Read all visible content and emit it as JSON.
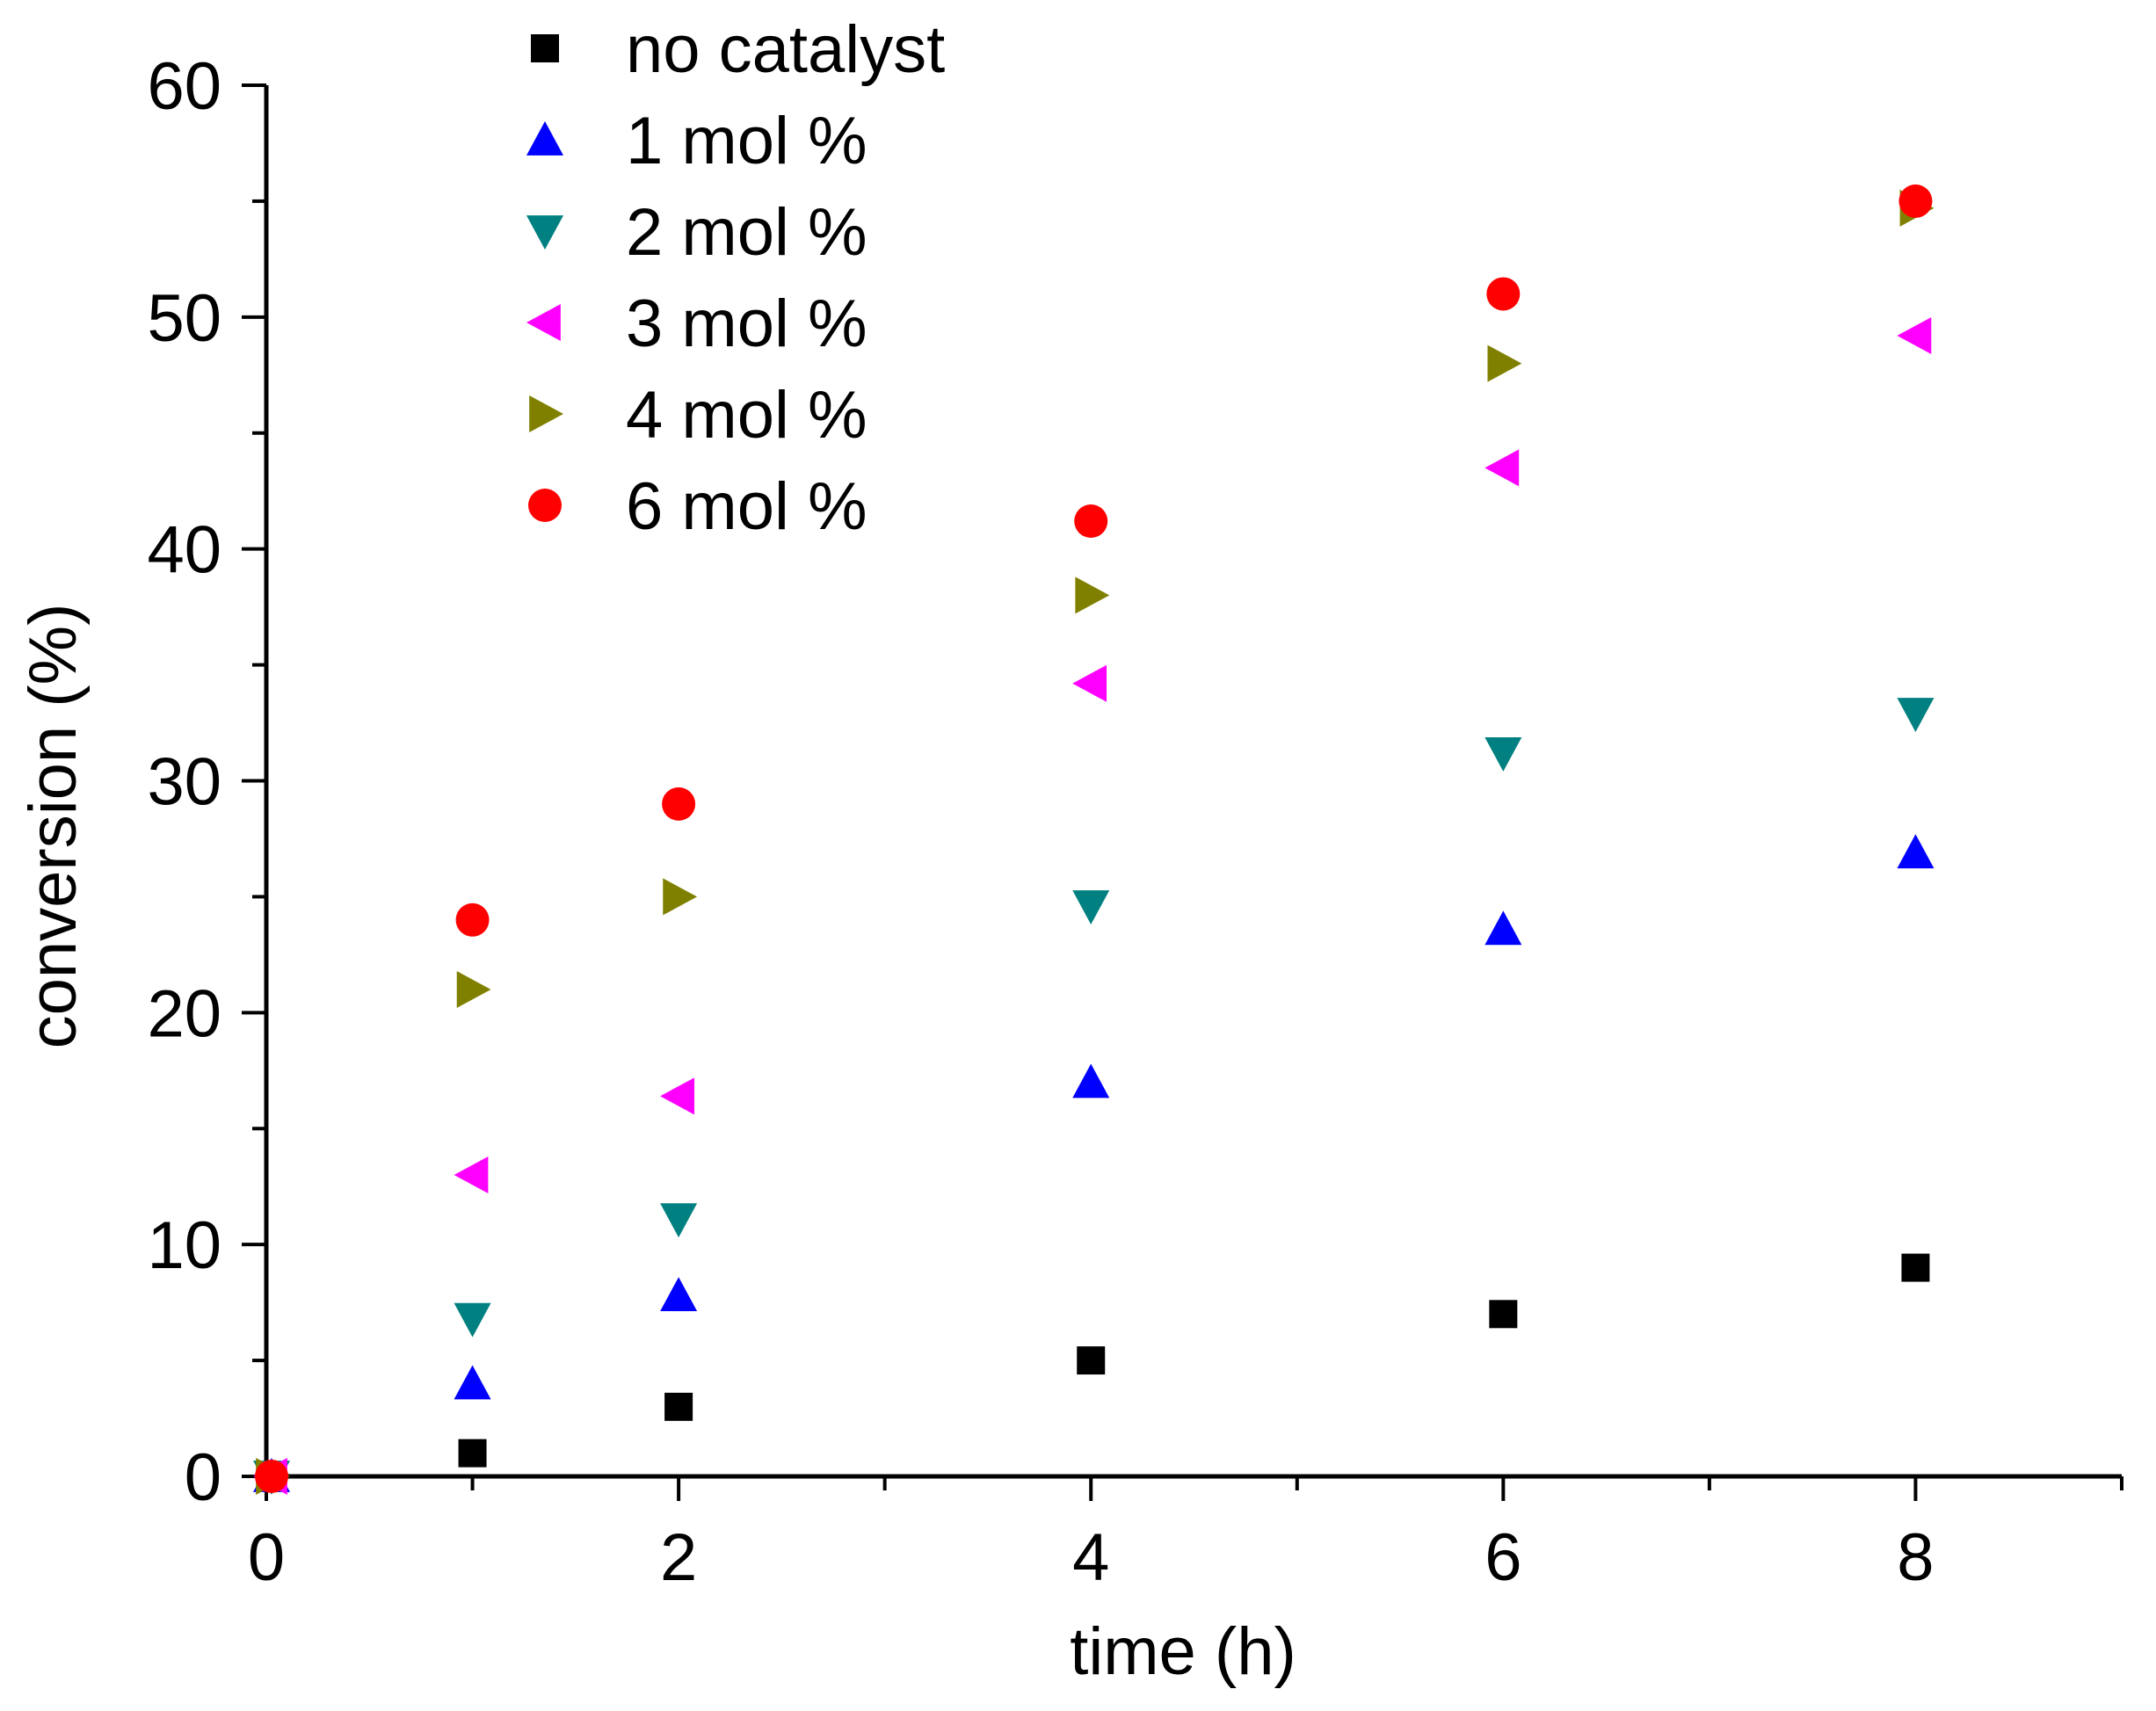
{
  "chart_data": {
    "type": "scatter",
    "title": "",
    "xlabel": "time (h)",
    "ylabel": "conversion (%)",
    "xlim": [
      0,
      9
    ],
    "ylim": [
      0,
      60
    ],
    "xticks": [
      0,
      2,
      4,
      6,
      8
    ],
    "yticks": [
      0,
      10,
      20,
      30,
      40,
      50,
      60
    ],
    "grid": false,
    "legend_position": "top-left",
    "series": [
      {
        "name": "no catalyst",
        "marker": "square",
        "color": "#000000",
        "x": [
          0,
          1,
          2,
          4,
          6,
          8
        ],
        "y": [
          0,
          1,
          3,
          5,
          7,
          9
        ]
      },
      {
        "name": "1 mol %",
        "marker": "triangle-up",
        "color": "#0000ff",
        "x": [
          0,
          1,
          2,
          4,
          6,
          8
        ],
        "y": [
          0,
          4,
          7.8,
          17,
          23.6,
          26.9
        ]
      },
      {
        "name": "2 mol %",
        "marker": "triangle-down",
        "color": "#008080",
        "x": [
          0,
          1,
          2,
          4,
          6,
          8
        ],
        "y": [
          0,
          6.8,
          11.1,
          24.6,
          31.2,
          32.9
        ]
      },
      {
        "name": "3 mol %",
        "marker": "triangle-left",
        "color": "#ff00ff",
        "x": [
          0,
          1,
          2,
          4,
          6,
          8
        ],
        "y": [
          0,
          13,
          16.4,
          34.2,
          43.5,
          49.2
        ]
      },
      {
        "name": "4 mol %",
        "marker": "triangle-right",
        "color": "#808000",
        "x": [
          0,
          1,
          2,
          4,
          6,
          8
        ],
        "y": [
          0,
          21,
          25,
          38,
          48,
          54.7
        ]
      },
      {
        "name": "6 mol %",
        "marker": "circle",
        "color": "#ff0000",
        "x": [
          0,
          1,
          2,
          4,
          6,
          8
        ],
        "y": [
          0,
          24,
          29,
          41.2,
          51,
          55
        ]
      }
    ]
  }
}
